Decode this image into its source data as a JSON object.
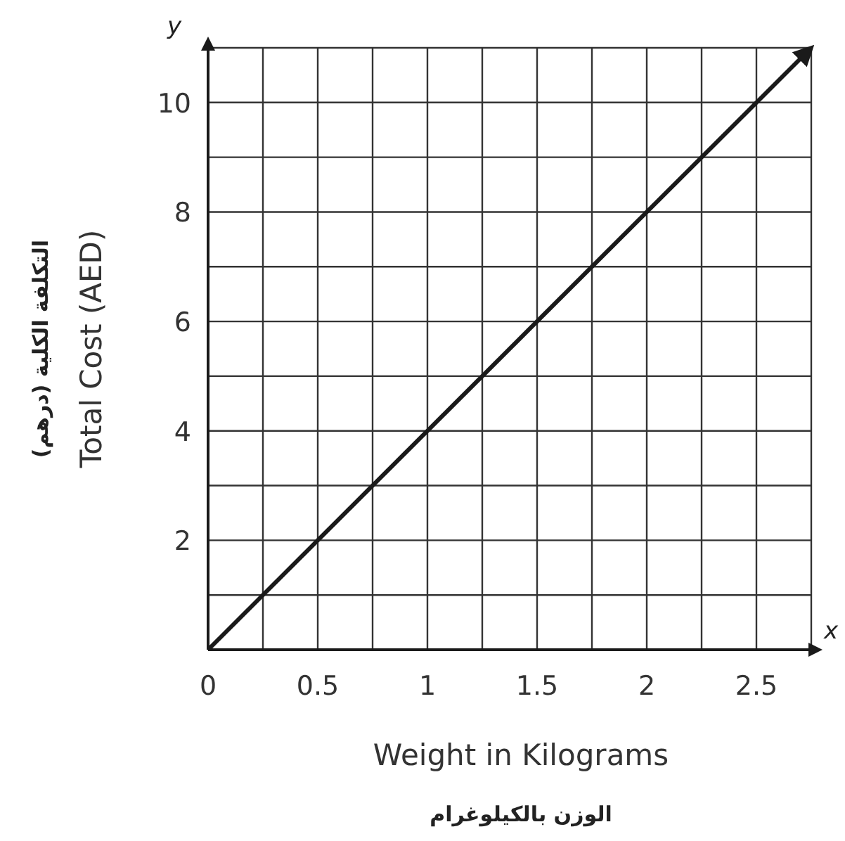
{
  "chart_data": {
    "type": "line",
    "xlabel": "Weight in Kilograms",
    "ylabel": "Total Cost (AED)",
    "annotations": [
      "الوزن بالكيلوغرام",
      "التكلفة الكلية (درهم)",
      "x",
      "y"
    ],
    "series": [
      {
        "color": "#1a1a1a",
        "x": [
          0,
          2.75
        ],
        "values": [
          0,
          11
        ]
      }
    ],
    "xlim": [
      0,
      2.75
    ],
    "ylim": [
      0,
      11
    ],
    "xticks": [
      {
        "value": 0,
        "label": "0"
      },
      {
        "value": 0.25,
        "label": null
      },
      0.5,
      {
        "value": 0.75,
        "label": null
      },
      1,
      {
        "value": 1.25,
        "label": null
      },
      1.5,
      {
        "value": 1.75,
        "label": null
      },
      2,
      {
        "value": 2.25,
        "label": null
      },
      2.5,
      {
        "value": 2.75,
        "label": null
      }
    ],
    "yticks": [
      {
        "value": 1,
        "label": null
      },
      2,
      {
        "value": 3,
        "label": null
      },
      4,
      {
        "value": 5,
        "label": null
      },
      6,
      {
        "value": 7,
        "label": null
      },
      8,
      {
        "value": 9,
        "label": null
      },
      10,
      {
        "value": 11,
        "label": null
      }
    ],
    "grid": true,
    "marker": "none",
    "line_style": "solid"
  }
}
